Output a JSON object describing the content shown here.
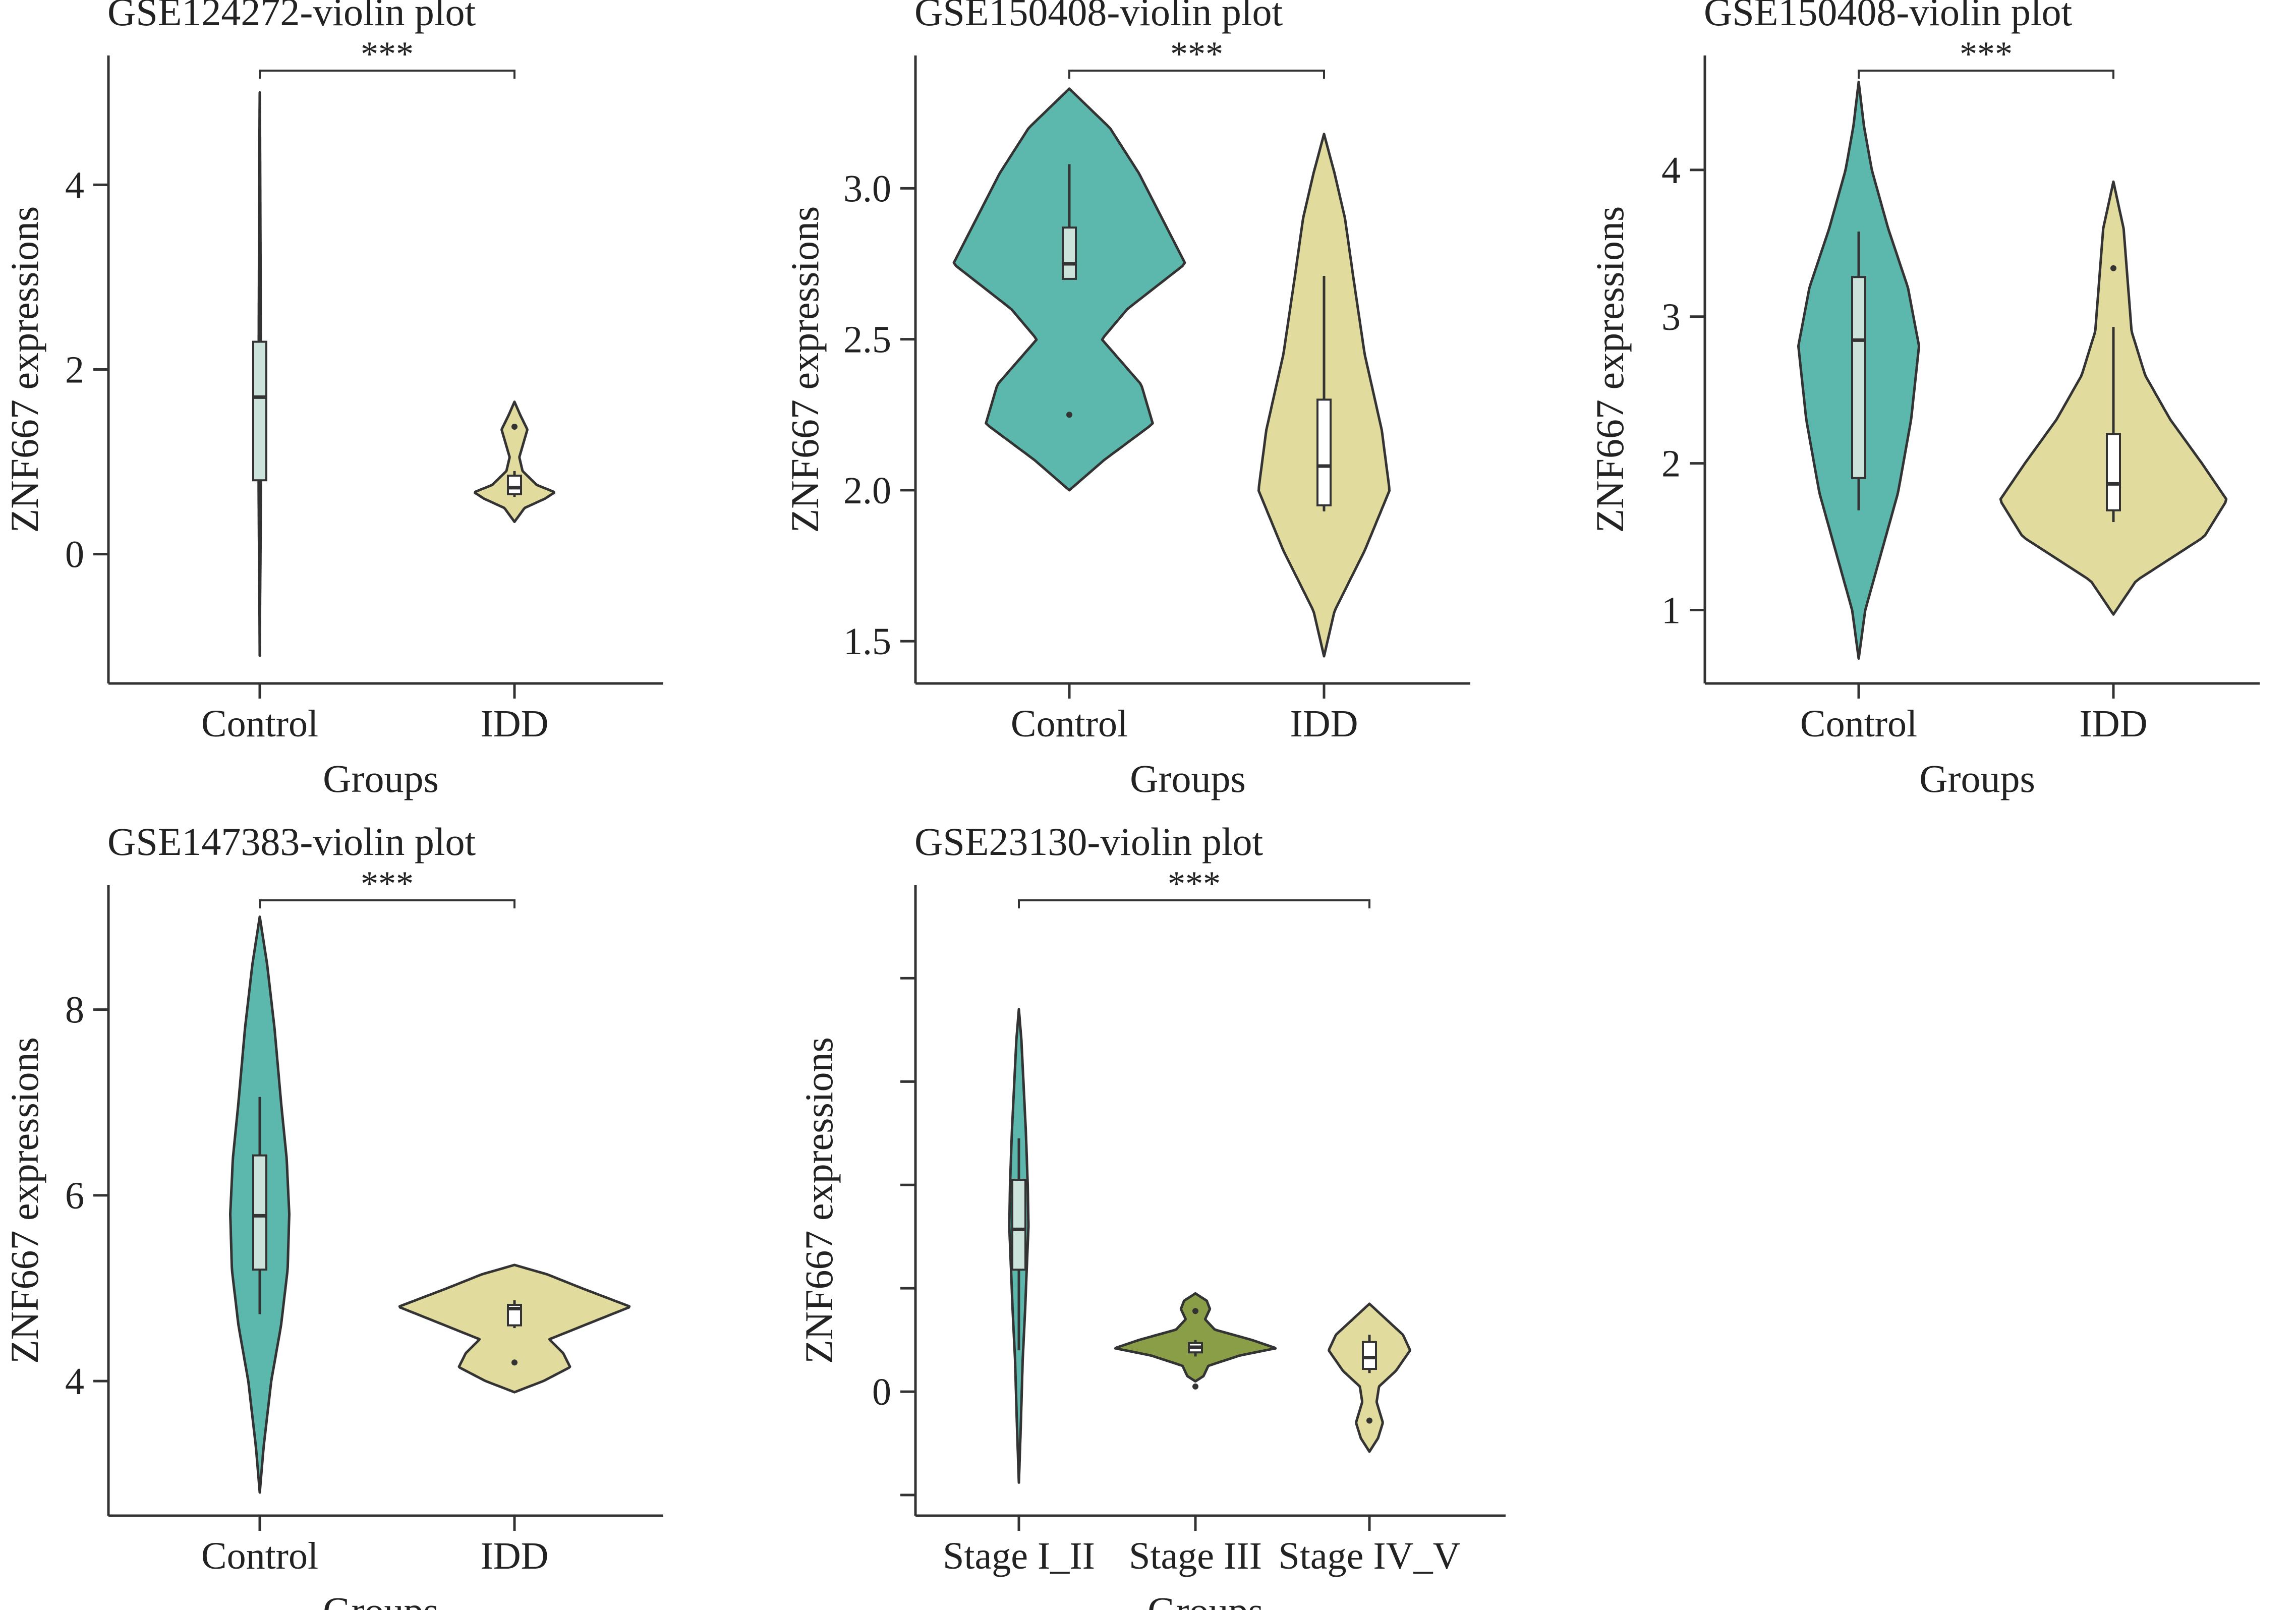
{
  "colors": {
    "teal": "#5cb8ad",
    "khaki": "#e2db9e",
    "olive": "#8a9e48",
    "outline": "#333333",
    "box_fill": "#cce3dc"
  },
  "chart_data": [
    {
      "type": "violin",
      "title": "GSE124272-violin plot",
      "xlabel": "Groups",
      "ylabel": "ZNF667 expressions",
      "ylim": [
        -1.4,
        5.4
      ],
      "yticks": [
        0,
        2,
        4
      ],
      "ytick_labels": [
        "0",
        "2",
        "4"
      ],
      "categories": [
        "Control",
        "IDD"
      ],
      "significance": "***",
      "series": [
        {
          "name": "Control",
          "color": "teal",
          "min": -1.1,
          "max": 5.0,
          "profile": [
            [
              -1.1,
              0
            ],
            [
              -0.5,
              0.03
            ],
            [
              0,
              0.07
            ],
            [
              0.7,
              0.11
            ],
            [
              1.2,
              0.12
            ],
            [
              1.7,
              0.11
            ],
            [
              2.3,
              0.1
            ],
            [
              3,
              0.08
            ],
            [
              3.6,
              0.06
            ],
            [
              4.2,
              0.04
            ],
            [
              4.7,
              0.02
            ],
            [
              5,
              0
            ]
          ],
          "box": {
            "q1": 0.8,
            "median": 1.7,
            "q3": 2.3,
            "whisker_low": 0.6,
            "whisker_high": 3.2
          },
          "outliers": []
        },
        {
          "name": "IDD",
          "color": "khaki",
          "min": 0.35,
          "max": 1.65,
          "profile": [
            [
              0.35,
              0
            ],
            [
              0.5,
              0.25
            ],
            [
              0.6,
              0.75
            ],
            [
              0.67,
              1.0
            ],
            [
              0.75,
              0.55
            ],
            [
              0.9,
              0.2
            ],
            [
              1.05,
              0.12
            ],
            [
              1.2,
              0.22
            ],
            [
              1.35,
              0.32
            ],
            [
              1.5,
              0.15
            ],
            [
              1.65,
              0
            ]
          ],
          "box": {
            "q1": 0.65,
            "median": 0.72,
            "q3": 0.85,
            "whisker_low": 0.62,
            "whisker_high": 0.9
          },
          "outliers": [
            1.38
          ]
        }
      ]
    },
    {
      "type": "violin",
      "title": "GSE150408-violin plot",
      "xlabel": "Groups",
      "ylabel": "ZNF667 expressions",
      "ylim": [
        1.36,
        3.44
      ],
      "yticks": [
        1.5,
        2.0,
        2.5,
        3.0
      ],
      "ytick_labels": [
        "1.5",
        "2.0",
        "2.5",
        "3.0"
      ],
      "categories": [
        "Control",
        "IDD"
      ],
      "significance": "***",
      "series": [
        {
          "name": "Control",
          "color": "teal",
          "min": 2.0,
          "max": 3.33,
          "profile": [
            [
              2,
              0
            ],
            [
              2.1,
              0.3
            ],
            [
              2.22,
              0.72
            ],
            [
              2.35,
              0.62
            ],
            [
              2.5,
              0.28
            ],
            [
              2.6,
              0.5
            ],
            [
              2.75,
              1.0
            ],
            [
              2.9,
              0.8
            ],
            [
              3.05,
              0.6
            ],
            [
              3.2,
              0.35
            ],
            [
              3.33,
              0
            ]
          ],
          "box": {
            "q1": 2.7,
            "median": 2.75,
            "q3": 2.87,
            "whisker_low": 2.7,
            "whisker_high": 3.08
          },
          "outliers": [
            2.25
          ]
        },
        {
          "name": "IDD",
          "color": "khaki",
          "min": 1.45,
          "max": 3.18,
          "profile": [
            [
              1.45,
              0
            ],
            [
              1.6,
              0.16
            ],
            [
              1.8,
              0.62
            ],
            [
              2,
              1.0
            ],
            [
              2.2,
              0.88
            ],
            [
              2.45,
              0.62
            ],
            [
              2.7,
              0.45
            ],
            [
              2.9,
              0.32
            ],
            [
              3.05,
              0.16
            ],
            [
              3.18,
              0
            ]
          ],
          "box": {
            "q1": 1.95,
            "median": 2.08,
            "q3": 2.3,
            "whisker_low": 1.93,
            "whisker_high": 2.71
          },
          "outliers": []
        }
      ]
    },
    {
      "type": "violin",
      "title": "GSE150408-violin plot",
      "xlabel": "Groups",
      "ylabel": "ZNF667 expressions",
      "ylim": [
        0.5,
        4.78
      ],
      "yticks": [
        1,
        2,
        3,
        4
      ],
      "ytick_labels": [
        "1",
        "2",
        "3",
        "4"
      ],
      "categories": [
        "Control",
        "IDD"
      ],
      "significance": "***",
      "series": [
        {
          "name": "Control",
          "color": "teal",
          "min": 0.67,
          "max": 4.6,
          "profile": [
            [
              0.67,
              0
            ],
            [
              1,
              0.1
            ],
            [
              1.4,
              0.35
            ],
            [
              1.8,
              0.6
            ],
            [
              2.3,
              0.8
            ],
            [
              2.8,
              0.92
            ],
            [
              3.2,
              0.75
            ],
            [
              3.6,
              0.45
            ],
            [
              4,
              0.2
            ],
            [
              4.3,
              0.08
            ],
            [
              4.6,
              0
            ]
          ],
          "box": {
            "q1": 1.9,
            "median": 2.84,
            "q3": 3.27,
            "whisker_low": 1.68,
            "whisker_high": 3.58
          },
          "outliers": []
        },
        {
          "name": "IDD",
          "color": "khaki",
          "min": 0.97,
          "max": 3.92,
          "profile": [
            [
              0.97,
              0
            ],
            [
              1.2,
              0.2
            ],
            [
              1.5,
              0.8
            ],
            [
              1.75,
              1.0
            ],
            [
              2,
              0.78
            ],
            [
              2.3,
              0.5
            ],
            [
              2.6,
              0.28
            ],
            [
              2.9,
              0.16
            ],
            [
              3.3,
              0.12
            ],
            [
              3.6,
              0.09
            ],
            [
              3.92,
              0
            ]
          ],
          "box": {
            "q1": 1.68,
            "median": 1.86,
            "q3": 2.2,
            "whisker_low": 1.6,
            "whisker_high": 2.93
          },
          "outliers": [
            3.33
          ]
        }
      ]
    },
    {
      "type": "violin",
      "title": "GSE147383-violin plot",
      "xlabel": "Groups",
      "ylabel": "ZNF667 expressions",
      "ylim": [
        2.55,
        9.34
      ],
      "yticks": [
        4,
        6,
        8
      ],
      "ytick_labels": [
        "4",
        "6",
        "8"
      ],
      "categories": [
        "Control",
        "IDD"
      ],
      "significance": "***",
      "series": [
        {
          "name": "Control",
          "color": "teal",
          "min": 2.8,
          "max": 9.0,
          "profile": [
            [
              2.8,
              0
            ],
            [
              3.3,
              0.12
            ],
            [
              4,
              0.35
            ],
            [
              4.6,
              0.65
            ],
            [
              5.2,
              0.85
            ],
            [
              5.8,
              0.9
            ],
            [
              6.4,
              0.82
            ],
            [
              7,
              0.65
            ],
            [
              7.8,
              0.45
            ],
            [
              8.5,
              0.22
            ],
            [
              9,
              0
            ]
          ],
          "box": {
            "q1": 5.2,
            "median": 5.78,
            "q3": 6.43,
            "whisker_low": 4.72,
            "whisker_high": 7.06
          },
          "outliers": []
        },
        {
          "name": "IDD",
          "color": "khaki",
          "min": 3.88,
          "max": 5.25,
          "profile": [
            [
              3.88,
              0
            ],
            [
              4,
              0.25
            ],
            [
              4.15,
              0.48
            ],
            [
              4.3,
              0.42
            ],
            [
              4.45,
              0.3
            ],
            [
              4.6,
              0.6
            ],
            [
              4.8,
              1.0
            ],
            [
              5,
              0.58
            ],
            [
              5.15,
              0.28
            ],
            [
              5.25,
              0
            ]
          ],
          "box": {
            "q1": 4.6,
            "median": 4.78,
            "q3": 4.82,
            "whisker_low": 4.57,
            "whisker_high": 4.87
          },
          "outliers": [
            4.2
          ]
        }
      ]
    },
    {
      "type": "violin",
      "title": "GSE23130-violin plot",
      "xlabel": "Groups",
      "ylabel": "ZNF667 expressions",
      "ylim": [
        -1.2,
        4.9
      ],
      "yticks": [
        -1,
        0,
        1,
        2,
        3,
        4
      ],
      "ytick_labels": [
        "",
        "0",
        "",
        "",
        "",
        ""
      ],
      "categories": [
        "Stage I_II",
        "Stage III",
        "Stage IV_V"
      ],
      "significance": "***",
      "series": [
        {
          "name": "Stage I_II",
          "color": "teal",
          "min": -0.88,
          "max": 3.7,
          "profile": [
            [
              -0.88,
              0
            ],
            [
              -0.3,
              0.08
            ],
            [
              0.3,
              0.15
            ],
            [
              0.8,
              0.25
            ],
            [
              1.3,
              0.33
            ],
            [
              1.6,
              0.38
            ],
            [
              2,
              0.35
            ],
            [
              2.5,
              0.28
            ],
            [
              3,
              0.18
            ],
            [
              3.4,
              0.1
            ],
            [
              3.7,
              0
            ]
          ],
          "box": {
            "q1": 1.18,
            "median": 1.57,
            "q3": 2.05,
            "whisker_low": 0.4,
            "whisker_high": 2.45
          },
          "outliers": []
        },
        {
          "name": "Stage III",
          "color": "olive",
          "min": 0.1,
          "max": 0.95,
          "profile": [
            [
              0.1,
              0
            ],
            [
              0.15,
              0.1
            ],
            [
              0.25,
              0.16
            ],
            [
              0.35,
              0.55
            ],
            [
              0.42,
              1.0
            ],
            [
              0.5,
              0.7
            ],
            [
              0.6,
              0.24
            ],
            [
              0.7,
              0.12
            ],
            [
              0.8,
              0.18
            ],
            [
              0.88,
              0.14
            ],
            [
              0.95,
              0
            ]
          ],
          "box": {
            "q1": 0.38,
            "median": 0.43,
            "q3": 0.47,
            "whisker_low": 0.34,
            "whisker_high": 0.5
          },
          "outliers": [
            0.78,
            0.05
          ]
        },
        {
          "name": "Stage IV_V",
          "color": "khaki",
          "min": -0.58,
          "max": 0.85,
          "profile": [
            [
              -0.58,
              0
            ],
            [
              -0.45,
              0.18
            ],
            [
              -0.3,
              0.28
            ],
            [
              -0.1,
              0.15
            ],
            [
              0.05,
              0.2
            ],
            [
              0.2,
              0.55
            ],
            [
              0.4,
              0.85
            ],
            [
              0.55,
              0.7
            ],
            [
              0.7,
              0.35
            ],
            [
              0.85,
              0
            ]
          ],
          "box": {
            "q1": 0.22,
            "median": 0.33,
            "q3": 0.48,
            "whisker_low": 0.18,
            "whisker_high": 0.55
          },
          "outliers": [
            -0.28
          ]
        }
      ]
    }
  ]
}
